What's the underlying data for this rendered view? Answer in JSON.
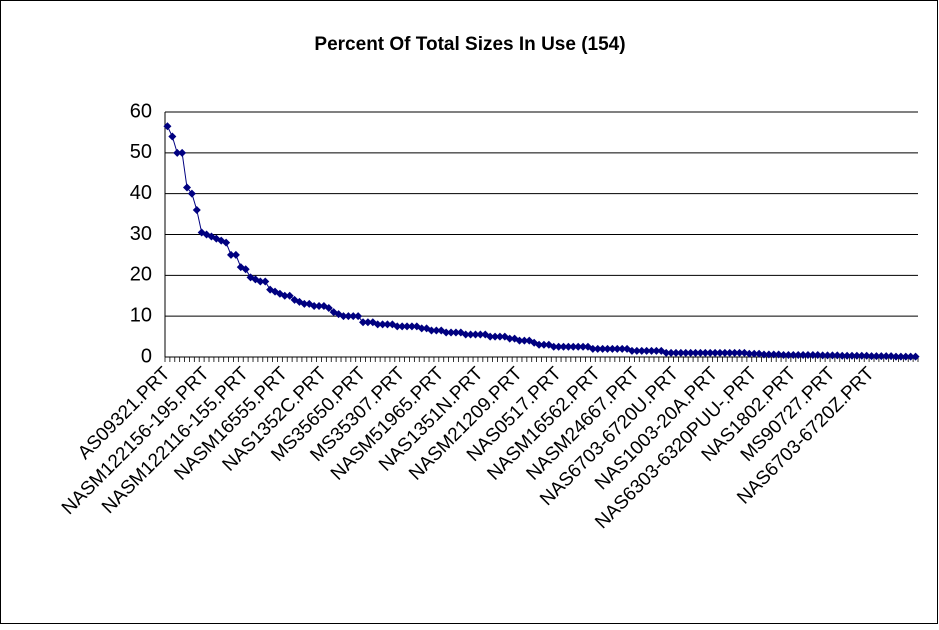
{
  "chart_data": {
    "type": "line",
    "title": "Percent Of Total Sizes In Use (154)",
    "categories": [
      "AS09321.PRT",
      null,
      null,
      null,
      null,
      null,
      null,
      null,
      "NASM122156-195.PRT",
      null,
      null,
      null,
      null,
      null,
      null,
      null,
      "NASM122116-155.PRT",
      null,
      null,
      null,
      null,
      null,
      null,
      null,
      "NASM16555.PRT",
      null,
      null,
      null,
      null,
      null,
      null,
      null,
      "NAS1352C.PRT",
      null,
      null,
      null,
      null,
      null,
      null,
      null,
      "MS35650.PRT",
      null,
      null,
      null,
      null,
      null,
      null,
      null,
      "MS35307.PRT",
      null,
      null,
      null,
      null,
      null,
      null,
      null,
      "NASM51965.PRT",
      null,
      null,
      null,
      null,
      null,
      null,
      null,
      "NAS1351N.PRT",
      null,
      null,
      null,
      null,
      null,
      null,
      null,
      "NASM21209.PRT",
      null,
      null,
      null,
      null,
      null,
      null,
      null,
      "NAS0517.PRT",
      null,
      null,
      null,
      null,
      null,
      null,
      null,
      "NASM16562.PRT",
      null,
      null,
      null,
      null,
      null,
      null,
      null,
      "NASM24667.PRT",
      null,
      null,
      null,
      null,
      null,
      null,
      null,
      "NAS6703-6720U.PRT",
      null,
      null,
      null,
      null,
      null,
      null,
      null,
      "NAS1003-20A.PRT",
      null,
      null,
      null,
      null,
      null,
      null,
      null,
      "NAS6303-6320PUU-.PRT",
      null,
      null,
      null,
      null,
      null,
      null,
      null,
      "NAS1802.PRT",
      null,
      null,
      null,
      null,
      null,
      null,
      null,
      "MS90727.PRT",
      null,
      null,
      null,
      null,
      null,
      null,
      null,
      "NAS6703-6720Z.PRT",
      null,
      null,
      null,
      null,
      null,
      null,
      null,
      null,
      null
    ],
    "series": [
      {
        "name": "Percent",
        "color": "#000080",
        "values": [
          56.5,
          54,
          50,
          50,
          41.5,
          40,
          36,
          30.5,
          30,
          29.5,
          29,
          28.5,
          28,
          25,
          25,
          22,
          21.5,
          19.5,
          19,
          18.5,
          18.5,
          16.5,
          16,
          15.5,
          15,
          15,
          14,
          13.5,
          13,
          13,
          12.5,
          12.5,
          12.5,
          12,
          11,
          10.5,
          10,
          10,
          10,
          10,
          8.5,
          8.5,
          8.5,
          8,
          8,
          8,
          8,
          7.5,
          7.5,
          7.5,
          7.5,
          7.5,
          7,
          7,
          6.5,
          6.5,
          6.5,
          6,
          6,
          6,
          6,
          5.5,
          5.5,
          5.5,
          5.5,
          5.5,
          5,
          5,
          5,
          5,
          4.5,
          4.5,
          4,
          4,
          4,
          3.5,
          3,
          3,
          3,
          2.5,
          2.5,
          2.5,
          2.5,
          2.5,
          2.5,
          2.5,
          2.5,
          2,
          2,
          2,
          2,
          2,
          2,
          2,
          2,
          1.5,
          1.5,
          1.5,
          1.5,
          1.5,
          1.5,
          1.5,
          1,
          1,
          1,
          1,
          1,
          1,
          1,
          1,
          1,
          1,
          1,
          1,
          1,
          1,
          1,
          1,
          1,
          0.8,
          0.8,
          0.8,
          0.6,
          0.6,
          0.6,
          0.6,
          0.5,
          0.5,
          0.5,
          0.5,
          0.5,
          0.5,
          0.5,
          0.5,
          0.4,
          0.4,
          0.4,
          0.4,
          0.3,
          0.3,
          0.3,
          0.3,
          0.3,
          0.3,
          0.2,
          0.2,
          0.2,
          0.2,
          0.2,
          0.1,
          0.1,
          0.1,
          0.1,
          0.1
        ]
      }
    ],
    "ylim": [
      0,
      60
    ],
    "yticks": [
      0,
      10,
      20,
      30,
      40,
      50,
      60
    ],
    "grid": true
  }
}
